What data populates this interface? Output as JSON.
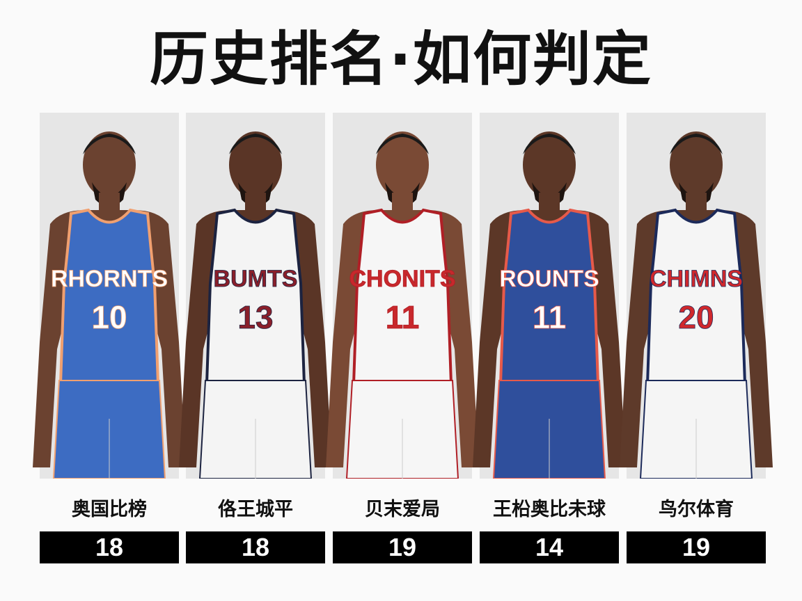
{
  "title": "历史排名·如何判定",
  "players": [
    {
      "name": "奥国比榜",
      "score": "18",
      "jersey_text": "RHORNTS",
      "number": "10",
      "jersey_color": "#3d6cc2",
      "text_color": "#ffffff",
      "trim": "#f0a070",
      "skin": "#6b4230"
    },
    {
      "name": "佫王城平",
      "score": "18",
      "jersey_text": "BUMTS",
      "number": "13",
      "jersey_color": "#f4f4f4",
      "text_color": "#8a1f2a",
      "trim": "#1c2340",
      "skin": "#5a3526"
    },
    {
      "name": "贝末爱局",
      "score": "19",
      "jersey_text": "CHONITS",
      "number": "11",
      "jersey_color": "#f6f6f6",
      "text_color": "#c8282c",
      "trim": "#b01f26",
      "skin": "#7a4a35"
    },
    {
      "name": "王柗奥比未球",
      "score": "14",
      "jersey_text": "ROUNTS",
      "number": "11",
      "jersey_color": "#2f4f9c",
      "text_color": "#ffffff",
      "trim": "#e65a4a",
      "skin": "#5c3727"
    },
    {
      "name": "鸟尔体育",
      "score": "19",
      "jersey_text": "CHIMNS",
      "number": "20",
      "jersey_color": "#f5f5f5",
      "text_color": "#d0282c",
      "trim": "#1c2a5a",
      "skin": "#5e3a2a"
    }
  ]
}
